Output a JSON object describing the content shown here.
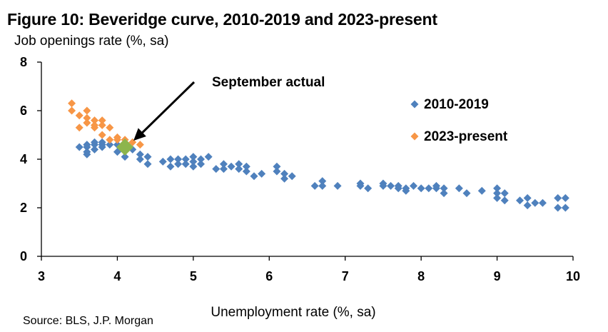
{
  "title": "Figure 10: Beveridge curve, 2010-2019 and 2023-present",
  "subtitle": "Job openings rate (%, sa)",
  "source": "Source: BLS, J.P. Morgan",
  "colors": {
    "series_2010": "#4f81bd",
    "series_2023": "#f79646",
    "highlight": "#8db54c"
  },
  "chart_data": {
    "type": "scatter",
    "xlabel": "Unemployment rate (%, sa)",
    "ylabel": "Job openings rate (%, sa)",
    "xlim": [
      3,
      10
    ],
    "ylim": [
      0,
      8
    ],
    "xticks": [
      "3",
      "4",
      "5",
      "6",
      "7",
      "8",
      "9",
      "10"
    ],
    "yticks": [
      "0",
      "2",
      "4",
      "6",
      "8"
    ],
    "grid": false,
    "legend_position": "top-right",
    "annotation": {
      "text": "September actual",
      "x": 4.1,
      "y": 4.5
    },
    "series": [
      {
        "name": "2010-2019",
        "points": [
          [
            3.5,
            4.5
          ],
          [
            3.6,
            4.5
          ],
          [
            3.6,
            4.6
          ],
          [
            3.6,
            4.3
          ],
          [
            3.6,
            4.2
          ],
          [
            3.7,
            4.4
          ],
          [
            3.7,
            4.6
          ],
          [
            3.7,
            4.7
          ],
          [
            3.8,
            4.5
          ],
          [
            3.8,
            4.6
          ],
          [
            3.8,
            4.7
          ],
          [
            3.9,
            4.6
          ],
          [
            4.0,
            4.6
          ],
          [
            4.0,
            4.3
          ],
          [
            4.1,
            4.4
          ],
          [
            4.1,
            4.1
          ],
          [
            4.2,
            4.4
          ],
          [
            4.3,
            4.2
          ],
          [
            4.3,
            4.0
          ],
          [
            4.4,
            4.1
          ],
          [
            4.4,
            3.8
          ],
          [
            4.6,
            3.9
          ],
          [
            4.7,
            4.0
          ],
          [
            4.7,
            3.7
          ],
          [
            4.8,
            4.0
          ],
          [
            4.8,
            3.8
          ],
          [
            4.9,
            4.0
          ],
          [
            4.9,
            3.8
          ],
          [
            5.0,
            4.1
          ],
          [
            5.0,
            3.7
          ],
          [
            5.0,
            3.9
          ],
          [
            5.1,
            4.0
          ],
          [
            5.1,
            3.8
          ],
          [
            5.2,
            4.1
          ],
          [
            5.3,
            3.6
          ],
          [
            5.4,
            3.8
          ],
          [
            5.4,
            3.6
          ],
          [
            5.5,
            3.7
          ],
          [
            5.6,
            3.8
          ],
          [
            5.6,
            3.6
          ],
          [
            5.7,
            3.5
          ],
          [
            5.7,
            3.7
          ],
          [
            5.8,
            3.3
          ],
          [
            5.9,
            3.4
          ],
          [
            6.1,
            3.7
          ],
          [
            6.1,
            3.5
          ],
          [
            6.2,
            3.4
          ],
          [
            6.2,
            3.2
          ],
          [
            6.3,
            3.3
          ],
          [
            6.6,
            2.9
          ],
          [
            6.7,
            3.1
          ],
          [
            6.7,
            2.9
          ],
          [
            6.9,
            2.9
          ],
          [
            7.2,
            3.0
          ],
          [
            7.2,
            2.9
          ],
          [
            7.3,
            2.8
          ],
          [
            7.5,
            3.0
          ],
          [
            7.5,
            2.9
          ],
          [
            7.6,
            2.9
          ],
          [
            7.7,
            2.9
          ],
          [
            7.7,
            2.8
          ],
          [
            7.8,
            2.8
          ],
          [
            7.8,
            2.7
          ],
          [
            7.9,
            2.9
          ],
          [
            8.0,
            2.8
          ],
          [
            8.1,
            2.8
          ],
          [
            8.2,
            2.8
          ],
          [
            8.2,
            2.9
          ],
          [
            8.3,
            2.8
          ],
          [
            8.3,
            2.6
          ],
          [
            8.5,
            2.8
          ],
          [
            8.6,
            2.6
          ],
          [
            8.8,
            2.7
          ],
          [
            9.0,
            2.8
          ],
          [
            9.0,
            2.6
          ],
          [
            9.0,
            2.4
          ],
          [
            9.1,
            2.6
          ],
          [
            9.1,
            2.3
          ],
          [
            9.3,
            2.3
          ],
          [
            9.4,
            2.4
          ],
          [
            9.4,
            2.1
          ],
          [
            9.5,
            2.2
          ],
          [
            9.6,
            2.2
          ],
          [
            9.8,
            2.4
          ],
          [
            9.8,
            2.0
          ],
          [
            9.9,
            2.4
          ],
          [
            9.9,
            2.0
          ]
        ]
      },
      {
        "name": "2023-present",
        "points": [
          [
            3.4,
            6.3
          ],
          [
            3.4,
            6.0
          ],
          [
            3.5,
            5.8
          ],
          [
            3.5,
            5.3
          ],
          [
            3.6,
            6.0
          ],
          [
            3.6,
            5.5
          ],
          [
            3.6,
            5.7
          ],
          [
            3.7,
            5.6
          ],
          [
            3.7,
            5.3
          ],
          [
            3.7,
            5.4
          ],
          [
            3.8,
            5.6
          ],
          [
            3.8,
            5.0
          ],
          [
            3.8,
            5.4
          ],
          [
            3.9,
            5.3
          ],
          [
            3.9,
            4.8
          ],
          [
            4.0,
            4.9
          ],
          [
            4.0,
            4.8
          ],
          [
            4.1,
            4.8
          ],
          [
            4.2,
            4.7
          ],
          [
            4.3,
            4.6
          ]
        ]
      },
      {
        "name": "September actual",
        "points": [
          [
            4.1,
            4.5
          ]
        ]
      }
    ]
  }
}
